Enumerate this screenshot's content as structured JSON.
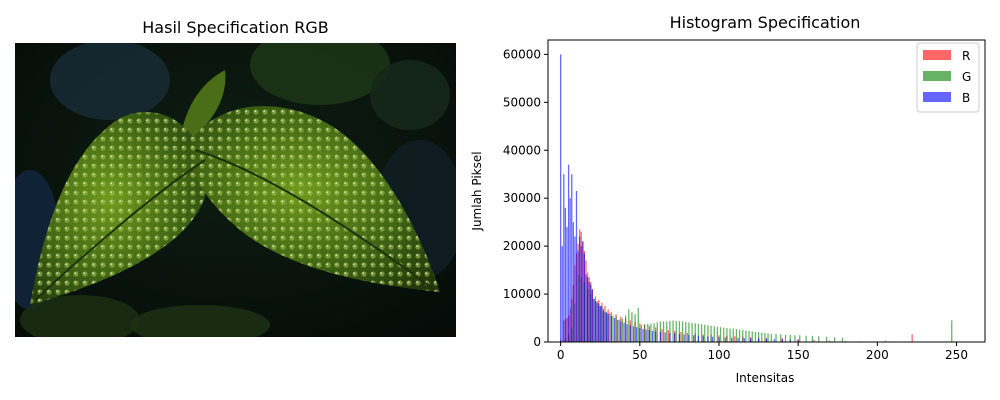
{
  "left_panel": {
    "title": "Hasil Specification RGB",
    "image_subject": "leaf-with-water-droplets"
  },
  "chart_data": {
    "type": "bar",
    "title": "Histogram Specification",
    "xlabel": "Intensitas",
    "ylabel": "Jumlah Piksel",
    "xlim": [
      -8,
      268
    ],
    "ylim": [
      0,
      63000
    ],
    "xticks": [
      0,
      50,
      100,
      150,
      200,
      250
    ],
    "yticks": [
      0,
      10000,
      20000,
      30000,
      40000,
      50000,
      60000
    ],
    "legend": {
      "placement": "top-right"
    },
    "series": [
      {
        "name": "R",
        "color": "#ff0000",
        "opacity": 0.6,
        "points": [
          [
            0,
            500
          ],
          [
            2,
            4500
          ],
          [
            3,
            4800
          ],
          [
            4,
            5000
          ],
          [
            5,
            5500
          ],
          [
            6,
            7000
          ],
          [
            7,
            9000
          ],
          [
            8,
            12000
          ],
          [
            9,
            16000
          ],
          [
            10,
            18500
          ],
          [
            11,
            20500
          ],
          [
            12,
            23500
          ],
          [
            13,
            23000
          ],
          [
            14,
            21000
          ],
          [
            15,
            19000
          ],
          [
            16,
            17000
          ],
          [
            17,
            14500
          ],
          [
            18,
            13500
          ],
          [
            19,
            12500
          ],
          [
            20,
            11000
          ],
          [
            22,
            9500
          ],
          [
            24,
            8800
          ],
          [
            26,
            8200
          ],
          [
            28,
            7500
          ],
          [
            30,
            6800
          ],
          [
            32,
            6200
          ],
          [
            35,
            5800
          ],
          [
            38,
            5300
          ],
          [
            41,
            4900
          ],
          [
            44,
            4500
          ],
          [
            47,
            4200
          ],
          [
            50,
            3900
          ],
          [
            53,
            3600
          ],
          [
            56,
            3300
          ],
          [
            60,
            3000
          ],
          [
            64,
            2700
          ],
          [
            68,
            2500
          ],
          [
            72,
            2300
          ],
          [
            76,
            2100
          ],
          [
            80,
            1900
          ],
          [
            85,
            1750
          ],
          [
            90,
            1600
          ],
          [
            95,
            1500
          ],
          [
            100,
            1400
          ],
          [
            105,
            1300
          ],
          [
            110,
            1200
          ],
          [
            115,
            1100
          ],
          [
            120,
            1000
          ],
          [
            125,
            950
          ],
          [
            130,
            900
          ],
          [
            140,
            800
          ],
          [
            150,
            600
          ],
          [
            160,
            450
          ],
          [
            170,
            300
          ],
          [
            180,
            200
          ],
          [
            190,
            150
          ],
          [
            200,
            100
          ],
          [
            210,
            120
          ],
          [
            222,
            1600
          ]
        ]
      },
      {
        "name": "G",
        "color": "#008000",
        "opacity": 0.6,
        "points": [
          [
            0,
            300
          ],
          [
            3,
            800
          ],
          [
            5,
            1500
          ],
          [
            7,
            3000
          ],
          [
            9,
            8000
          ],
          [
            11,
            14000
          ],
          [
            13,
            13500
          ],
          [
            15,
            12500
          ],
          [
            17,
            11000
          ],
          [
            19,
            10000
          ],
          [
            21,
            9000
          ],
          [
            23,
            8500
          ],
          [
            25,
            7500
          ],
          [
            27,
            7000
          ],
          [
            29,
            6300
          ],
          [
            31,
            6000
          ],
          [
            33,
            5500
          ],
          [
            35,
            5300
          ],
          [
            37,
            4700
          ],
          [
            39,
            4900
          ],
          [
            41,
            5500
          ],
          [
            43,
            6800
          ],
          [
            45,
            6200
          ],
          [
            47,
            5800
          ],
          [
            49,
            7100
          ],
          [
            51,
            3600
          ],
          [
            53,
            3700
          ],
          [
            55,
            3800
          ],
          [
            57,
            3800
          ],
          [
            59,
            3900
          ],
          [
            61,
            4100
          ],
          [
            63,
            4300
          ],
          [
            65,
            4300
          ],
          [
            67,
            4300
          ],
          [
            69,
            4400
          ],
          [
            71,
            4500
          ],
          [
            73,
            4400
          ],
          [
            75,
            4400
          ],
          [
            77,
            4300
          ],
          [
            79,
            4200
          ],
          [
            81,
            4100
          ],
          [
            83,
            4000
          ],
          [
            85,
            3900
          ],
          [
            87,
            3800
          ],
          [
            89,
            3700
          ],
          [
            91,
            3600
          ],
          [
            93,
            3500
          ],
          [
            95,
            3400
          ],
          [
            97,
            3300
          ],
          [
            99,
            3200
          ],
          [
            101,
            3100
          ],
          [
            103,
            3000
          ],
          [
            105,
            2900
          ],
          [
            107,
            2800
          ],
          [
            109,
            2800
          ],
          [
            111,
            2700
          ],
          [
            113,
            2600
          ],
          [
            115,
            2500
          ],
          [
            117,
            2400
          ],
          [
            119,
            2300
          ],
          [
            121,
            2200
          ],
          [
            123,
            2100
          ],
          [
            125,
            2100
          ],
          [
            127,
            2000
          ],
          [
            129,
            1900
          ],
          [
            131,
            1800
          ],
          [
            133,
            1700
          ],
          [
            136,
            1700
          ],
          [
            139,
            1600
          ],
          [
            142,
            1500
          ],
          [
            145,
            1500
          ],
          [
            148,
            1400
          ],
          [
            151,
            1400
          ],
          [
            155,
            1300
          ],
          [
            159,
            1300
          ],
          [
            163,
            1200
          ],
          [
            168,
            1100
          ],
          [
            173,
            1000
          ],
          [
            178,
            900
          ],
          [
            205,
            300
          ],
          [
            247,
            4500
          ]
        ]
      },
      {
        "name": "B",
        "color": "#0000ff",
        "opacity": 0.6,
        "points": [
          [
            0,
            60000
          ],
          [
            1,
            20000
          ],
          [
            2,
            35000
          ],
          [
            3,
            28000
          ],
          [
            4,
            24000
          ],
          [
            5,
            37000
          ],
          [
            6,
            30000
          ],
          [
            7,
            35000
          ],
          [
            8,
            25000
          ],
          [
            9,
            22000
          ],
          [
            10,
            31500
          ],
          [
            11,
            19000
          ],
          [
            12,
            22000
          ],
          [
            13,
            20000
          ],
          [
            14,
            21000
          ],
          [
            15,
            18500
          ],
          [
            16,
            14000
          ],
          [
            17,
            13500
          ],
          [
            18,
            12500
          ],
          [
            19,
            12000
          ],
          [
            20,
            11000
          ],
          [
            21,
            9000
          ],
          [
            22,
            8500
          ],
          [
            23,
            8200
          ],
          [
            24,
            8000
          ],
          [
            25,
            7500
          ],
          [
            26,
            7500
          ],
          [
            27,
            6500
          ],
          [
            28,
            6200
          ],
          [
            29,
            6000
          ],
          [
            30,
            5800
          ],
          [
            32,
            5400
          ],
          [
            34,
            5000
          ],
          [
            36,
            4600
          ],
          [
            38,
            4300
          ],
          [
            40,
            4000
          ],
          [
            42,
            3700
          ],
          [
            44,
            3500
          ],
          [
            46,
            3300
          ],
          [
            48,
            3100
          ],
          [
            50,
            2900
          ],
          [
            52,
            2700
          ],
          [
            54,
            2600
          ],
          [
            56,
            2500
          ],
          [
            58,
            2300
          ],
          [
            60,
            2200
          ],
          [
            63,
            2100
          ],
          [
            66,
            2000
          ],
          [
            69,
            1900
          ],
          [
            72,
            1800
          ],
          [
            75,
            1700
          ],
          [
            78,
            1600
          ],
          [
            81,
            1500
          ],
          [
            84,
            1400
          ],
          [
            87,
            1300
          ],
          [
            90,
            1200
          ],
          [
            93,
            1200
          ],
          [
            96,
            1100
          ],
          [
            100,
            1000
          ],
          [
            104,
            950
          ],
          [
            108,
            900
          ],
          [
            112,
            850
          ],
          [
            116,
            800
          ],
          [
            120,
            750
          ],
          [
            125,
            700
          ],
          [
            130,
            650
          ],
          [
            135,
            600
          ],
          [
            140,
            550
          ],
          [
            145,
            500
          ],
          [
            150,
            450
          ]
        ]
      }
    ]
  }
}
